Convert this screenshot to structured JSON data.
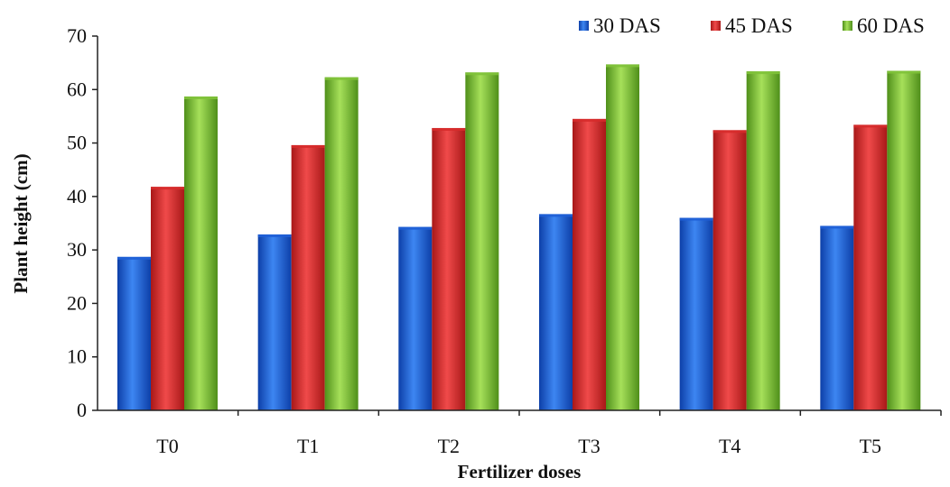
{
  "chart_data": {
    "type": "bar",
    "title": "",
    "xlabel": "Fertilizer doses",
    "ylabel": "Plant height (cm)",
    "ylim": [
      0,
      70
    ],
    "yticks": [
      0,
      10,
      20,
      30,
      40,
      50,
      60,
      70
    ],
    "categories": [
      "T0",
      "T1",
      "T2",
      "T3",
      "T4",
      "T5"
    ],
    "series": [
      {
        "name": "30 DAS",
        "color": "#1f5fd6",
        "values": [
          28.7,
          32.9,
          34.3,
          36.7,
          36.0,
          34.5
        ]
      },
      {
        "name": "45 DAS",
        "color": "#d62b2b",
        "values": [
          41.8,
          49.6,
          52.8,
          54.5,
          52.4,
          53.4
        ]
      },
      {
        "name": "60 DAS",
        "color": "#7fc23a",
        "values": [
          58.7,
          62.3,
          63.2,
          64.7,
          63.4,
          63.5
        ]
      }
    ],
    "grid": false,
    "legend_position": "top-right"
  }
}
